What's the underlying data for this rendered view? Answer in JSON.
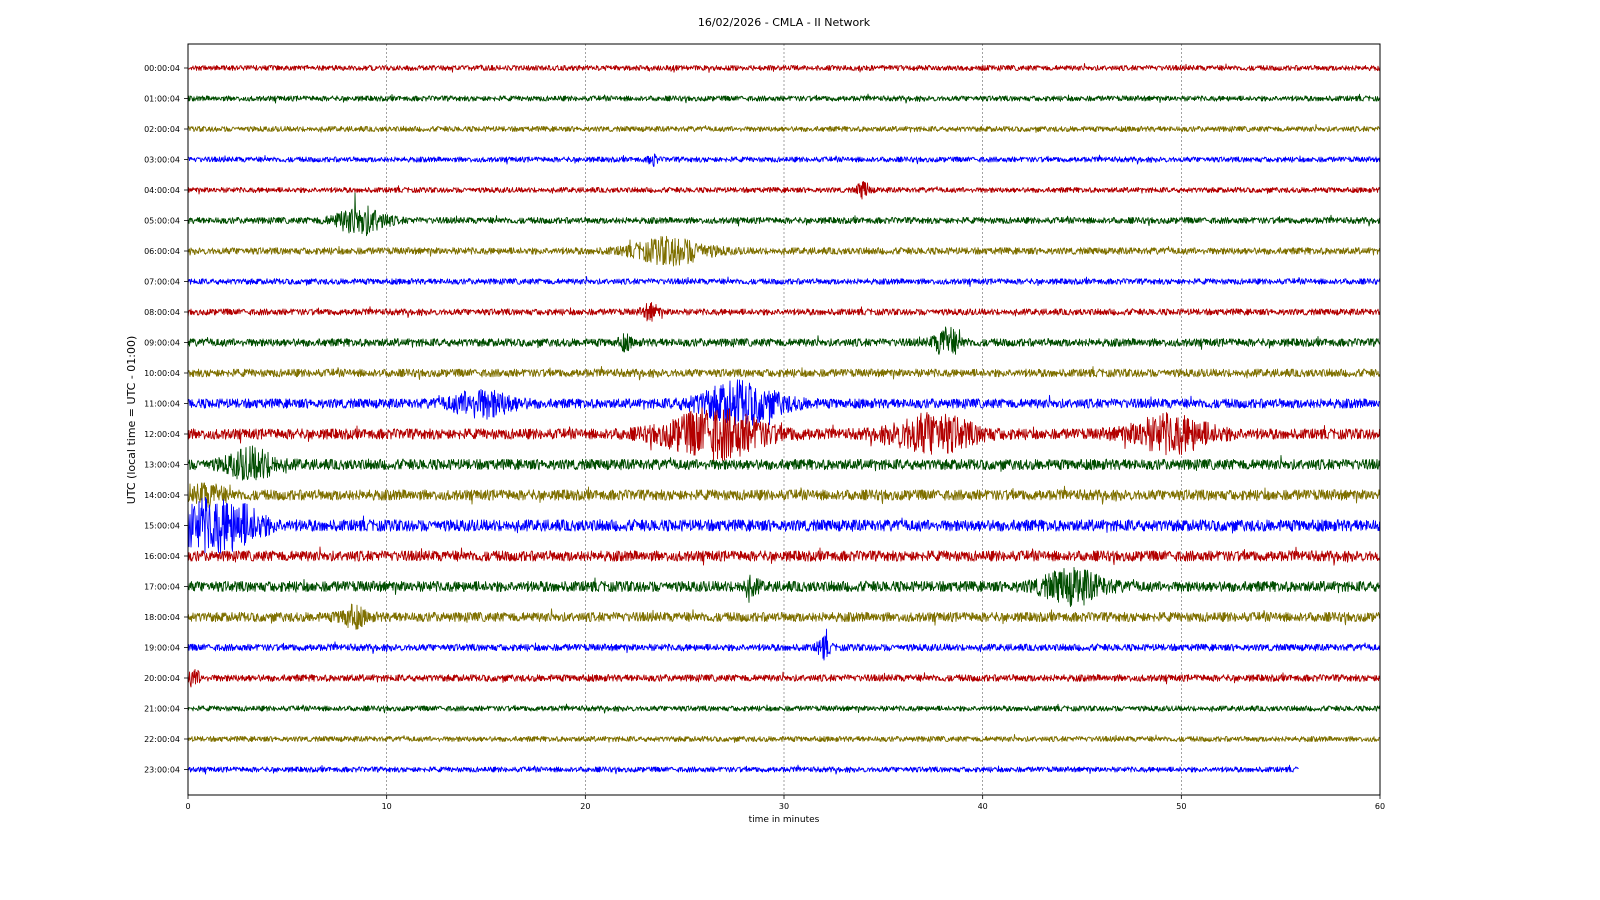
{
  "chart_data": {
    "type": "line",
    "title": "16/02/2026 - CMLA - II Network",
    "xlabel": "time in minutes",
    "ylabel": "UTC (local time = UTC - 01:00)",
    "xlim": [
      0,
      60
    ],
    "x_ticks": [
      0,
      10,
      20,
      30,
      40,
      50,
      60
    ],
    "grid": "vertical dashed lines at x ticks",
    "colors": [
      "#b30000",
      "#004d00",
      "#7f7000",
      "#0000ff"
    ],
    "series": [
      {
        "label": "00:00:04",
        "end_minute": 60,
        "base_amplitude": 1.0,
        "bursts": []
      },
      {
        "label": "01:00:04",
        "end_minute": 60,
        "base_amplitude": 1.0,
        "bursts": []
      },
      {
        "label": "02:00:04",
        "end_minute": 60,
        "base_amplitude": 1.0,
        "bursts": []
      },
      {
        "label": "03:00:04",
        "end_minute": 60,
        "base_amplitude": 1.0,
        "bursts": [
          {
            "at": 23.4,
            "amp": 1.8,
            "width": 0.2
          }
        ]
      },
      {
        "label": "04:00:04",
        "end_minute": 60,
        "base_amplitude": 1.0,
        "bursts": [
          {
            "at": 34.0,
            "amp": 2.6,
            "width": 0.3
          }
        ]
      },
      {
        "label": "05:00:04",
        "end_minute": 60,
        "base_amplitude": 1.2,
        "bursts": [
          {
            "at": 8.7,
            "amp": 4.5,
            "width": 1.2
          }
        ]
      },
      {
        "label": "06:00:04",
        "end_minute": 60,
        "base_amplitude": 1.3,
        "bursts": [
          {
            "at": 24.3,
            "amp": 4.0,
            "width": 1.8
          }
        ]
      },
      {
        "label": "07:00:04",
        "end_minute": 60,
        "base_amplitude": 1.1,
        "bursts": []
      },
      {
        "label": "08:00:04",
        "end_minute": 60,
        "base_amplitude": 1.2,
        "bursts": [
          {
            "at": 23.3,
            "amp": 2.5,
            "width": 0.4
          }
        ]
      },
      {
        "label": "09:00:04",
        "end_minute": 60,
        "base_amplitude": 1.5,
        "bursts": [
          {
            "at": 38.2,
            "amp": 4.5,
            "width": 0.6
          },
          {
            "at": 22.0,
            "amp": 2.0,
            "width": 0.3
          }
        ]
      },
      {
        "label": "10:00:04",
        "end_minute": 60,
        "base_amplitude": 1.5,
        "bursts": []
      },
      {
        "label": "11:00:04",
        "end_minute": 60,
        "base_amplitude": 1.8,
        "bursts": [
          {
            "at": 14.8,
            "amp": 4.0,
            "width": 1.5
          },
          {
            "at": 27.8,
            "amp": 6.5,
            "width": 2.0
          }
        ]
      },
      {
        "label": "12:00:04",
        "end_minute": 60,
        "base_amplitude": 2.0,
        "bursts": [
          {
            "at": 26.5,
            "amp": 7.5,
            "width": 2.5
          },
          {
            "at": 37.5,
            "amp": 6.0,
            "width": 2.0
          },
          {
            "at": 49.5,
            "amp": 5.5,
            "width": 2.0
          }
        ]
      },
      {
        "label": "13:00:04",
        "end_minute": 60,
        "base_amplitude": 2.0,
        "bursts": [
          {
            "at": 3.2,
            "amp": 4.5,
            "width": 1.2
          }
        ]
      },
      {
        "label": "14:00:04",
        "end_minute": 60,
        "base_amplitude": 2.0,
        "bursts": [
          {
            "at": 1.0,
            "amp": 3.0,
            "width": 0.8
          }
        ]
      },
      {
        "label": "15:00:04",
        "end_minute": 60,
        "base_amplitude": 2.2,
        "bursts": [
          {
            "at": 0.8,
            "amp": 7.0,
            "width": 1.5
          },
          {
            "at": 2.7,
            "amp": 5.0,
            "width": 1.2
          }
        ]
      },
      {
        "label": "16:00:04",
        "end_minute": 60,
        "base_amplitude": 2.0,
        "bursts": []
      },
      {
        "label": "17:00:04",
        "end_minute": 60,
        "base_amplitude": 2.0,
        "bursts": [
          {
            "at": 44.5,
            "amp": 5.0,
            "width": 1.5
          },
          {
            "at": 28.3,
            "amp": 2.5,
            "width": 0.4
          }
        ]
      },
      {
        "label": "18:00:04",
        "end_minute": 60,
        "base_amplitude": 1.8,
        "bursts": [
          {
            "at": 8.3,
            "amp": 3.0,
            "width": 0.6
          }
        ]
      },
      {
        "label": "19:00:04",
        "end_minute": 60,
        "base_amplitude": 1.3,
        "bursts": [
          {
            "at": 32.0,
            "amp": 3.2,
            "width": 0.3
          }
        ]
      },
      {
        "label": "20:00:04",
        "end_minute": 60,
        "base_amplitude": 1.3,
        "bursts": [
          {
            "at": 0.3,
            "amp": 2.5,
            "width": 0.3
          }
        ]
      },
      {
        "label": "21:00:04",
        "end_minute": 60,
        "base_amplitude": 1.0,
        "bursts": []
      },
      {
        "label": "22:00:04",
        "end_minute": 60,
        "base_amplitude": 1.0,
        "bursts": []
      },
      {
        "label": "23:00:04",
        "end_minute": 55.9,
        "base_amplitude": 1.0,
        "bursts": []
      }
    ]
  }
}
